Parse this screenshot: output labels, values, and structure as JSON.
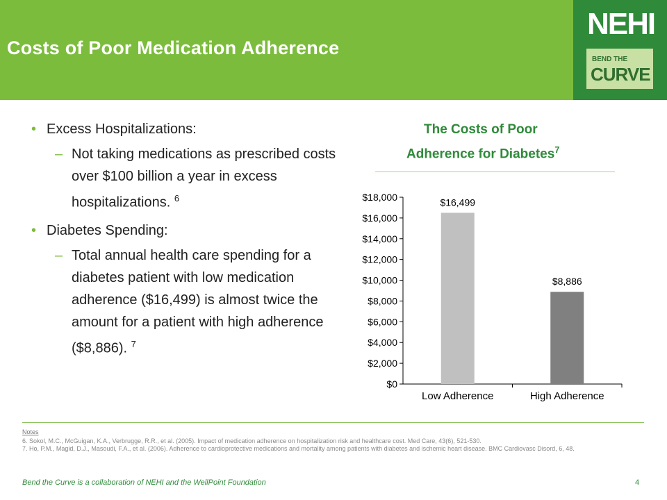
{
  "header": {
    "title": "Costs of Poor Medication Adherence"
  },
  "logo": {
    "mark": "NEHI",
    "tag_small": "BEND THE",
    "tag_big": "CURVE"
  },
  "bullets": [
    {
      "heading": "Excess Hospitalizations:",
      "detail": "Not taking medications as prescribed costs over $100 billion a year in excess hospitalizations.",
      "ref": "6"
    },
    {
      "heading": "Diabetes Spending:",
      "detail": "Total annual health care spending for a diabetes patient with low medication adherence ($16,499) is almost twice the amount for a patient with high adherence ($8,886).",
      "ref": "7"
    }
  ],
  "chart_data": {
    "type": "bar",
    "title_line1": "The Costs of Poor",
    "title_line2": "Adherence for Diabetes",
    "title_ref": "7",
    "categories": [
      "Low Adherence",
      "High Adherence"
    ],
    "values": [
      16499,
      8886
    ],
    "value_labels": [
      "$16,499",
      "$8,886"
    ],
    "bar_colors": [
      "#c0c0c0",
      "#808080"
    ],
    "ylim": [
      0,
      18000
    ],
    "yticks": [
      0,
      2000,
      4000,
      6000,
      8000,
      10000,
      12000,
      14000,
      16000,
      18000
    ],
    "ytick_labels": [
      "$0",
      "$2,000",
      "$4,000",
      "$6,000",
      "$8,000",
      "$10,000",
      "$12,000",
      "$14,000",
      "$16,000",
      "$18,000"
    ]
  },
  "notes": {
    "heading": "Notes",
    "items": [
      "6. Sokol, M.C., McGuigan, K.A., Verbrugge, R.R., et al. (2005). Impact of medication adherence on hospitalization risk and healthcare cost. Med Care, 43(6), 521-530.",
      "7. Ho, P.M., Magid, D.J., Masoudi, F.A., et al. (2006). Adherence to cardioprotective medications and mortality among patients with diabetes and ischemic heart disease. BMC Cardiovasc Disord, 6, 48."
    ]
  },
  "footer": {
    "text": "Bend the Curve is a collaboration of NEHI and the WellPoint Foundation",
    "page": "4"
  },
  "colors": {
    "header_green": "#7cbc3c",
    "logo_green": "#2f8a3a",
    "accent_text": "#2f8a3a"
  }
}
